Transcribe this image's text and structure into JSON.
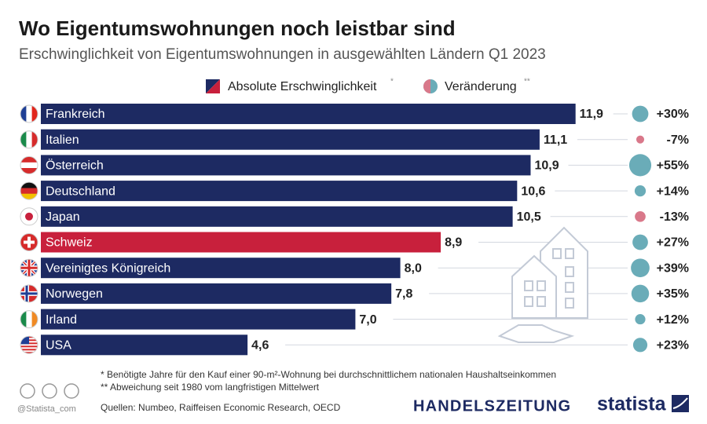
{
  "chart_data": {
    "type": "bar",
    "orientation": "horizontal",
    "title": "Wo Eigentumswohnungen noch leistbar sind",
    "subtitle": "Erschwinglichkeit von Eigentumswohnungen in ausgewählten Ländern Q1 2023",
    "categories": [
      "Frankreich",
      "Italien",
      "Österreich",
      "Deutschland",
      "Japan",
      "Schweiz",
      "Vereinigtes Königreich",
      "Norwegen",
      "Irland",
      "USA"
    ],
    "series": [
      {
        "name": "Absolute Erschwinglichkeit",
        "note_marker": "*",
        "color": "#1d2a62",
        "bar_colors": [
          "#1d2a62",
          "#1d2a62",
          "#1d2a62",
          "#1d2a62",
          "#1d2a62",
          "#c8203c",
          "#1d2a62",
          "#1d2a62",
          "#1d2a62",
          "#1d2a62"
        ],
        "values": [
          11.9,
          11.1,
          10.9,
          10.6,
          10.5,
          8.9,
          8.0,
          7.8,
          7.0,
          4.6
        ],
        "value_labels": [
          "11,9",
          "11,1",
          "10,9",
          "10,6",
          "10,5",
          "8,9",
          "8,0",
          "7,8",
          "7,0",
          "4,6"
        ]
      },
      {
        "name": "Veränderung",
        "note_marker": "**",
        "color": "#6aacb8",
        "negative_color": "#d9788a",
        "values": [
          30,
          -7,
          55,
          14,
          -13,
          27,
          39,
          35,
          12,
          23
        ],
        "value_labels": [
          "+30%",
          "-7%",
          "+55%",
          "+14%",
          "-13%",
          "+27%",
          "+39%",
          "+35%",
          "+12%",
          "+23%"
        ]
      }
    ],
    "footnotes": [
      "*  Benötigte Jahre für den Kauf einer 90-m²-Wohnung bei durchschnittlichem nationalen Haushaltseinkommen",
      "** Abweichung seit 1980 vom langfristigen Mittelwert"
    ],
    "sources": "Quellen: Numbeo, Raiffeisen Economic Research, OECD",
    "credit": "@Statista_com",
    "publisher": "HANDELSZEITUNG",
    "brand": "statista"
  }
}
